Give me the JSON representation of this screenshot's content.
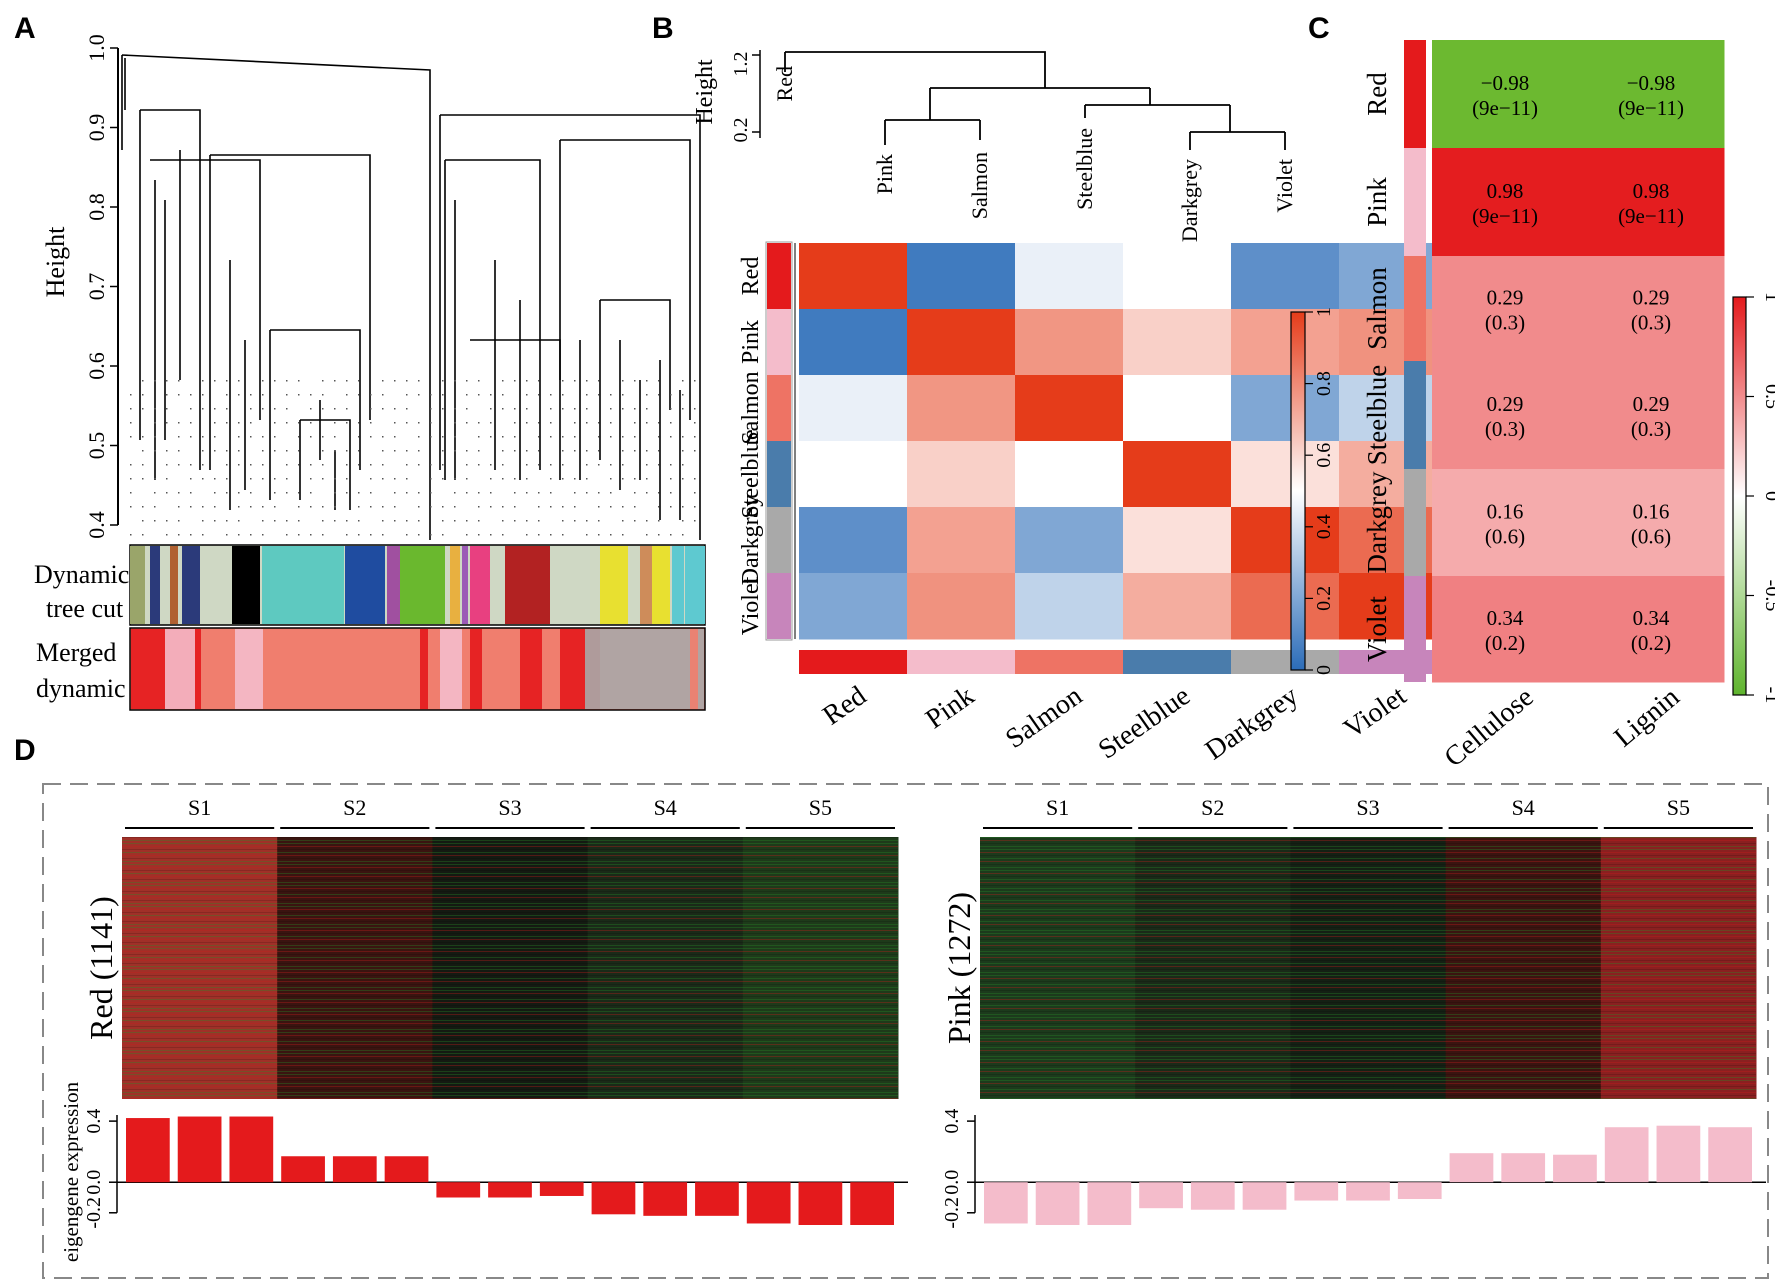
{
  "panel_labels": {
    "a": "A",
    "b": "B",
    "c": "C",
    "d": "D"
  },
  "chart_data": [
    {
      "panel": "A",
      "type": "dendrogram",
      "ylabel": "Height",
      "yticks": [
        "0.4",
        "0.5",
        "0.6",
        "0.7",
        "0.8",
        "0.9",
        "1.0"
      ],
      "ylim": [
        0.4,
        1.0
      ],
      "color_rows": [
        {
          "label_line1": "Dynamic",
          "label_line2": "tree cut"
        },
        {
          "label_line1": "Merged",
          "label_line2": "dynamic"
        }
      ]
    },
    {
      "panel": "B",
      "type": "heatmap",
      "dendro_ylabel": "Height",
      "dendro_ticks": [
        "0.2",
        "1.2"
      ],
      "modules": [
        "Red",
        "Pink",
        "Salmon",
        "Steelblue",
        "Darkgrey",
        "Violet"
      ],
      "module_colors": [
        "#e41a1c",
        "#f4bccb",
        "#ee7364",
        "#4a7cab",
        "#a9a9a9",
        "#c785bb"
      ],
      "values": [
        [
          1.0,
          0.05,
          0.45,
          0.5,
          0.12,
          0.2
        ],
        [
          0.05,
          1.0,
          0.77,
          0.62,
          0.74,
          0.78
        ],
        [
          0.45,
          0.77,
          1.0,
          0.5,
          0.2,
          0.35
        ],
        [
          0.5,
          0.62,
          0.5,
          1.0,
          0.58,
          0.71
        ],
        [
          0.12,
          0.74,
          0.2,
          0.58,
          1.0,
          0.88
        ],
        [
          0.2,
          0.78,
          0.35,
          0.71,
          0.88,
          1.0
        ]
      ],
      "colorbar_ticks": [
        "0",
        "0.2",
        "0.4",
        "0.6",
        "0.8",
        "1"
      ],
      "colorbar_range": [
        0,
        1
      ]
    },
    {
      "panel": "C",
      "type": "heatmap",
      "rows": [
        "Red",
        "Pink",
        "Salmon",
        "Steelblue",
        "Darkgrey",
        "Violet"
      ],
      "columns": [
        "Cellulose",
        "Lignin"
      ],
      "cells": [
        [
          {
            "r": -0.98,
            "line1": "−0.98",
            "line2": "(9e−11)"
          },
          {
            "r": -0.98,
            "line1": "−0.98",
            "line2": "(9e−11)"
          }
        ],
        [
          {
            "r": 0.98,
            "line1": "0.98",
            "line2": "(9e−11)"
          },
          {
            "r": 0.98,
            "line1": "0.98",
            "line2": "(9e−11)"
          }
        ],
        [
          {
            "r": 0.29,
            "line1": "0.29",
            "line2": "(0.3)"
          },
          {
            "r": 0.29,
            "line1": "0.29",
            "line2": "(0.3)"
          }
        ],
        [
          {
            "r": 0.29,
            "line1": "0.29",
            "line2": "(0.3)"
          },
          {
            "r": 0.29,
            "line1": "0.29",
            "line2": "(0.3)"
          }
        ],
        [
          {
            "r": 0.16,
            "line1": "0.16",
            "line2": "(0.6)"
          },
          {
            "r": 0.16,
            "line1": "0.16",
            "line2": "(0.6)"
          }
        ],
        [
          {
            "r": 0.34,
            "line1": "0.34",
            "line2": "(0.2)"
          },
          {
            "r": 0.34,
            "line1": "0.34",
            "line2": "(0.2)"
          }
        ]
      ],
      "colorbar_ticks": [
        "1",
        "0.5",
        "0",
        "-0.5",
        "-1"
      ],
      "colorbar_range": [
        -1,
        1
      ]
    },
    {
      "panel": "D",
      "type": "heatmap+bar",
      "stages": [
        "S1",
        "S2",
        "S3",
        "S4",
        "S5"
      ],
      "ylabel": "eigengene expression",
      "yticks": [
        "0.4",
        "0.0",
        "-0.2"
      ],
      "ylim": [
        -0.28,
        0.44
      ],
      "modules": [
        {
          "name": "Red",
          "count_label": "(1141)",
          "color": "#e41a1c",
          "values": [
            0.42,
            0.43,
            0.43,
            0.17,
            0.17,
            0.17,
            -0.1,
            -0.1,
            -0.09,
            -0.21,
            -0.22,
            -0.22,
            -0.27,
            -0.28,
            -0.28
          ]
        },
        {
          "name": "Pink",
          "count_label": "(1272)",
          "color": "#f4bccb",
          "values": [
            -0.27,
            -0.28,
            -0.28,
            -0.17,
            -0.18,
            -0.18,
            -0.12,
            -0.12,
            -0.11,
            0.19,
            0.19,
            0.18,
            0.36,
            0.37,
            0.36
          ]
        }
      ]
    }
  ]
}
